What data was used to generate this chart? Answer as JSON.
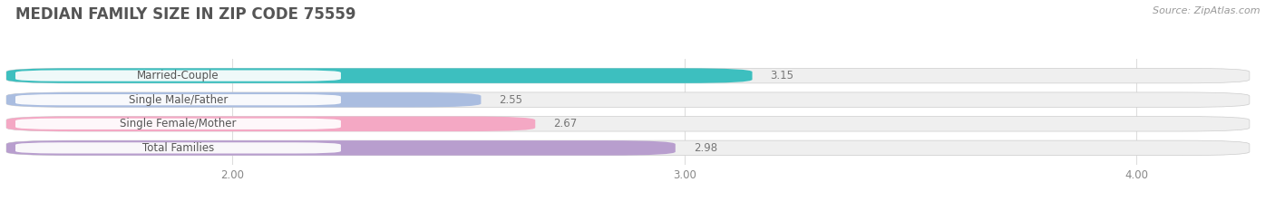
{
  "title": "MEDIAN FAMILY SIZE IN ZIP CODE 75559",
  "source": "Source: ZipAtlas.com",
  "categories": [
    "Married-Couple",
    "Single Male/Father",
    "Single Female/Mother",
    "Total Families"
  ],
  "values": [
    3.15,
    2.55,
    2.67,
    2.98
  ],
  "bar_colors": [
    "#3dbfbf",
    "#aabde0",
    "#f4a8c4",
    "#b89ece"
  ],
  "bar_bg_color": "#efefef",
  "xmin": 1.5,
  "xmax": 4.25,
  "xticks": [
    2.0,
    3.0,
    4.0
  ],
  "xtick_labels": [
    "2.00",
    "3.00",
    "4.00"
  ],
  "bar_height": 0.62,
  "bar_gap": 0.38,
  "label_fontsize": 8.5,
  "value_fontsize": 8.5,
  "title_fontsize": 12,
  "source_fontsize": 8,
  "title_color": "#555555",
  "label_color": "#555555",
  "value_color": "#777777",
  "source_color": "#999999",
  "background_color": "#ffffff",
  "grid_color": "#dddddd",
  "label_bg_color": "#ffffff"
}
